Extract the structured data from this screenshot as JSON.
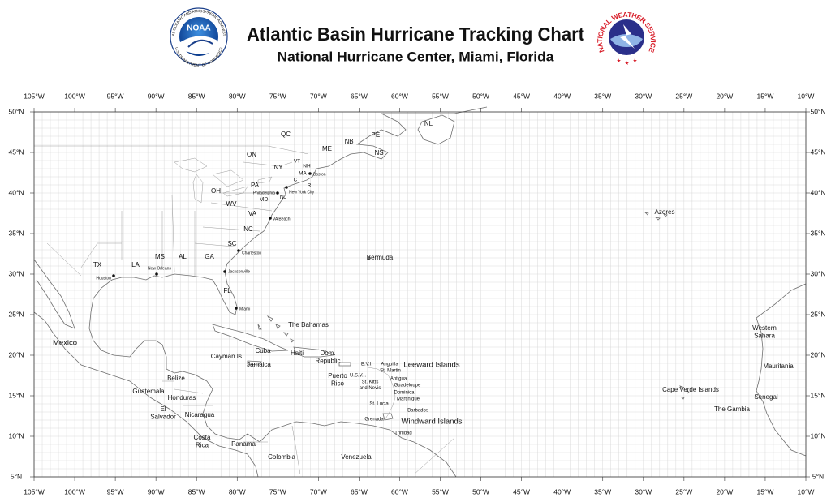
{
  "header": {
    "title": "Atlantic Basin Hurricane Tracking Chart",
    "subtitle": "National Hurricane Center, Miami, Florida",
    "noaa_logo": {
      "text": "NOAA",
      "ring_top": "NATIONAL OCEANIC AND ATMOSPHERIC ADMINISTRATION",
      "ring_bottom": "U.S. DEPARTMENT OF COMMERCE"
    },
    "nws_logo": {
      "ring": "NATIONAL WEATHER SERVICE"
    }
  },
  "longitude_ticks": [
    {
      "value": -105,
      "label": "105°W"
    },
    {
      "value": -100,
      "label": "100°W"
    },
    {
      "value": -95,
      "label": "95°W"
    },
    {
      "value": -90,
      "label": "90°W"
    },
    {
      "value": -85,
      "label": "85°W"
    },
    {
      "value": -80,
      "label": "80°W"
    },
    {
      "value": -75,
      "label": "75°W"
    },
    {
      "value": -70,
      "label": "70°W"
    },
    {
      "value": -65,
      "label": "65°W"
    },
    {
      "value": -60,
      "label": "60°W"
    },
    {
      "value": -55,
      "label": "55°W"
    },
    {
      "value": -50,
      "label": "50°W"
    },
    {
      "value": -45,
      "label": "45°W"
    },
    {
      "value": -40,
      "label": "40°W"
    },
    {
      "value": -35,
      "label": "35°W"
    },
    {
      "value": -30,
      "label": "30°W"
    },
    {
      "value": -25,
      "label": "25°W"
    },
    {
      "value": -20,
      "label": "20°W"
    },
    {
      "value": -15,
      "label": "15°W"
    },
    {
      "value": -10,
      "label": "10°W"
    }
  ],
  "latitude_ticks": [
    {
      "value": 50,
      "label": "50°N"
    },
    {
      "value": 45,
      "label": "45°N"
    },
    {
      "value": 40,
      "label": "40°N"
    },
    {
      "value": 35,
      "label": "35°N"
    },
    {
      "value": 30,
      "label": "30°N"
    },
    {
      "value": 25,
      "label": "25°N"
    },
    {
      "value": 20,
      "label": "20°N"
    },
    {
      "value": 15,
      "label": "15°N"
    },
    {
      "value": 10,
      "label": "10°N"
    },
    {
      "value": 5,
      "label": "5°N"
    }
  ],
  "places": [
    [
      "QC"
    ],
    [
      "ON"
    ],
    [
      "NY"
    ],
    [
      "VT"
    ],
    [
      "NH"
    ],
    [
      "ME"
    ],
    [
      "NB"
    ],
    [
      "PEI"
    ],
    [
      "NS"
    ],
    [
      "NL"
    ],
    [
      "MA"
    ],
    [
      "CT"
    ],
    [
      "RI"
    ],
    [
      "PA"
    ],
    [
      "NJ"
    ],
    [
      "MD"
    ],
    [
      "OH"
    ],
    [
      "WV"
    ],
    [
      "VA"
    ],
    [
      "NC"
    ],
    [
      "SC"
    ],
    [
      "GA"
    ],
    [
      "AL"
    ],
    [
      "MS"
    ],
    [
      "LA"
    ],
    [
      "TX"
    ],
    [
      "FL"
    ],
    [
      "Boston"
    ],
    [
      "New York City"
    ],
    [
      "Philadelphia"
    ],
    [
      "VA Beach"
    ],
    [
      "Charleston"
    ],
    [
      "Jacksonville"
    ],
    [
      "New Orleans"
    ],
    [
      "Houston"
    ],
    [
      "Miami"
    ],
    [
      "Bermuda"
    ],
    [
      "Azores"
    ],
    [
      "The Bahamas"
    ],
    [
      "Cuba"
    ],
    [
      "Cayman Is."
    ],
    [
      "Jamaica"
    ],
    [
      "Haiti"
    ],
    [
      "Dom.",
      "Republic"
    ],
    [
      "Puerto",
      "Rico"
    ],
    [
      "B.V.I."
    ],
    [
      "U.S.V.I."
    ],
    [
      "Anguilla"
    ],
    [
      "St. Martin"
    ],
    [
      "Leeward Islands"
    ],
    [
      "Antigua"
    ],
    [
      "St. Kitts",
      "and Nevis"
    ],
    [
      "Guadeloupe"
    ],
    [
      "Dominica"
    ],
    [
      "Martinique"
    ],
    [
      "St. Lucia"
    ],
    [
      "Barbados"
    ],
    [
      "Grenada"
    ],
    [
      "Windward Islands"
    ],
    [
      "Trinidad"
    ],
    [
      "Mexico"
    ],
    [
      "Belize"
    ],
    [
      "Guatemala"
    ],
    [
      "Honduras"
    ],
    [
      "El",
      "Salvador"
    ],
    [
      "Nicaragua"
    ],
    [
      "Costa",
      "Rica"
    ],
    [
      "Panama"
    ],
    [
      "Colombia"
    ],
    [
      "Venezuela"
    ],
    [
      "Western",
      "Sahara"
    ],
    [
      "Mauritania"
    ],
    [
      "Cape  Verde  Islands"
    ],
    [
      "Senegal"
    ],
    [
      "The Gambia"
    ]
  ]
}
